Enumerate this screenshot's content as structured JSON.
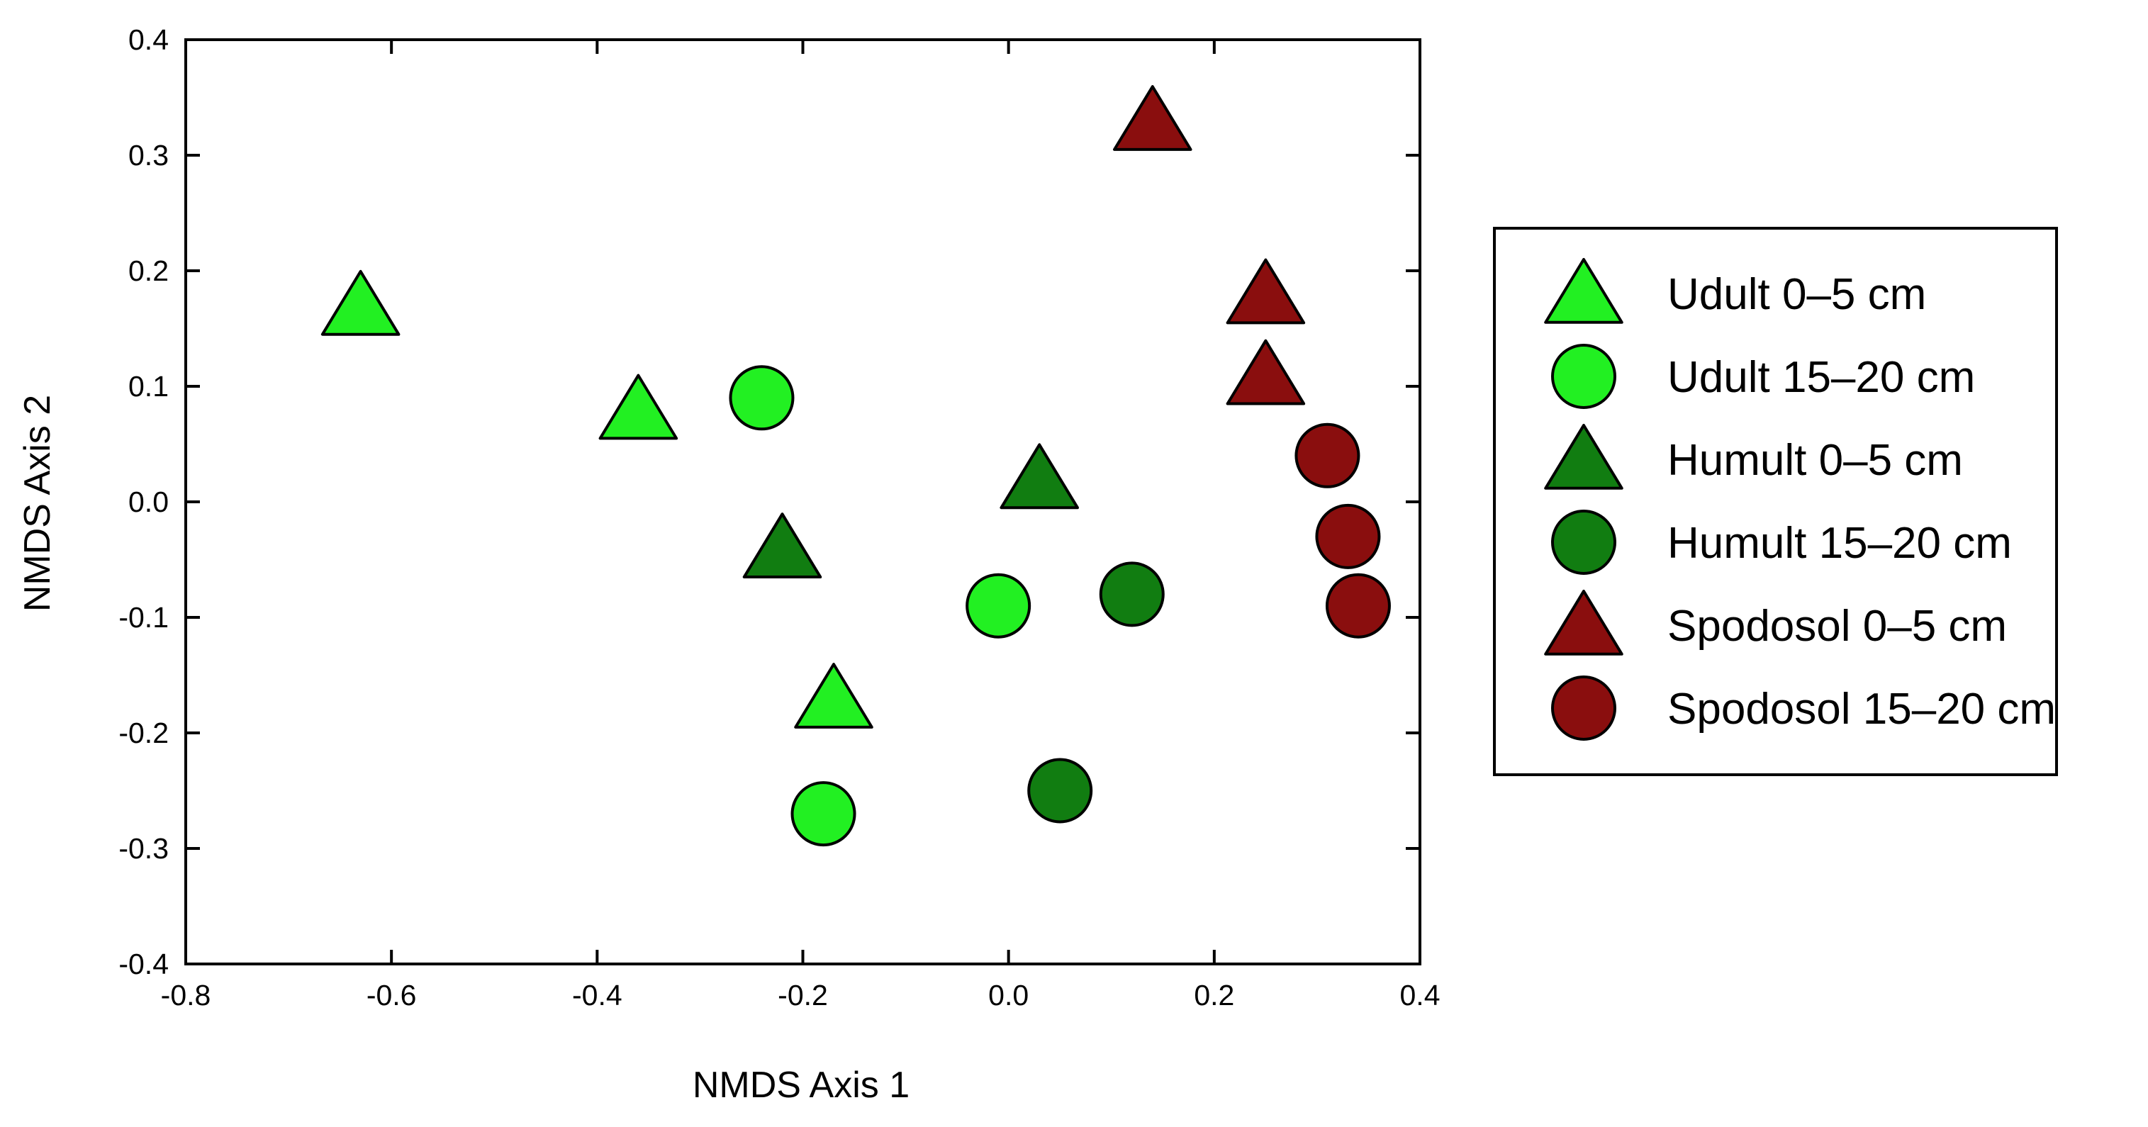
{
  "chart_data": {
    "type": "scatter",
    "xlabel": "NMDS Axis 1",
    "ylabel": "NMDS Axis 2",
    "xlim": [
      -0.8,
      0.4
    ],
    "ylim": [
      -0.4,
      0.4
    ],
    "x_ticks": [
      "-0.8",
      "-0.6",
      "-0.4",
      "-0.2",
      "0.0",
      "0.2",
      "0.4"
    ],
    "y_ticks": [
      "0.4",
      "0.3",
      "0.2",
      "0.1",
      "0.0",
      "-0.1",
      "-0.2",
      "-0.3",
      "-0.4"
    ],
    "grid": false,
    "legend_position": "right",
    "series": [
      {
        "name": "Udult 0–5 cm",
        "marker": "triangle",
        "color": "#22f022",
        "points": [
          [
            -0.63,
            0.17
          ],
          [
            -0.36,
            0.08
          ],
          [
            -0.17,
            -0.17
          ]
        ]
      },
      {
        "name": "Udult 15–20 cm",
        "marker": "circle",
        "color": "#22f022",
        "points": [
          [
            -0.24,
            0.09
          ],
          [
            -0.01,
            -0.09
          ],
          [
            -0.18,
            -0.27
          ]
        ]
      },
      {
        "name": "Humult 0–5 cm",
        "marker": "triangle",
        "color": "#117d11",
        "points": [
          [
            0.03,
            0.02
          ],
          [
            -0.22,
            -0.04
          ]
        ]
      },
      {
        "name": "Humult 15–20 cm",
        "marker": "circle",
        "color": "#117d11",
        "points": [
          [
            0.12,
            -0.08
          ],
          [
            0.05,
            -0.25
          ]
        ]
      },
      {
        "name": "Spodosol 0–5 cm",
        "marker": "triangle",
        "color": "#8a0e0e",
        "points": [
          [
            0.14,
            0.33
          ],
          [
            0.25,
            0.18
          ],
          [
            0.25,
            0.11
          ]
        ]
      },
      {
        "name": "Spodosol 15–20 cm",
        "marker": "circle",
        "color": "#8a0e0e",
        "points": [
          [
            0.31,
            0.04
          ],
          [
            0.33,
            -0.03
          ],
          [
            0.34,
            -0.09
          ]
        ]
      }
    ]
  }
}
